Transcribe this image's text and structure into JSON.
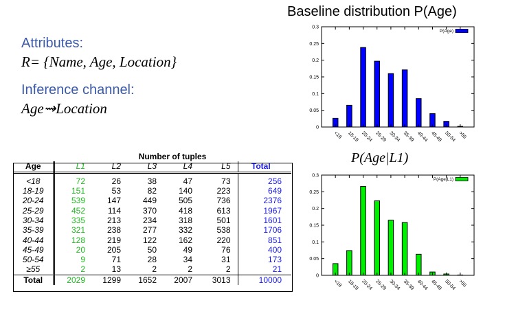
{
  "left": {
    "attributes_label": "Attributes:",
    "relation": "R= {Name, Age, Location}",
    "inference_label": "Inference channel:",
    "channel": "Age⇝Location"
  },
  "table": {
    "title": "Number of tuples",
    "headers": [
      "Age",
      "L1",
      "L2",
      "L3",
      "L4",
      "L5",
      "Total"
    ],
    "rows": [
      [
        "<18",
        "72",
        "26",
        "38",
        "47",
        "73",
        "256"
      ],
      [
        "18-19",
        "151",
        "53",
        "82",
        "140",
        "223",
        "649"
      ],
      [
        "20-24",
        "539",
        "147",
        "449",
        "505",
        "736",
        "2376"
      ],
      [
        "25-29",
        "452",
        "114",
        "370",
        "418",
        "613",
        "1967"
      ],
      [
        "30-34",
        "335",
        "213",
        "234",
        "318",
        "501",
        "1601"
      ],
      [
        "35-39",
        "321",
        "238",
        "277",
        "332",
        "538",
        "1706"
      ],
      [
        "40-44",
        "128",
        "219",
        "122",
        "162",
        "220",
        "851"
      ],
      [
        "45-49",
        "20",
        "205",
        "50",
        "49",
        "76",
        "400"
      ],
      [
        "50-54",
        "9",
        "71",
        "28",
        "34",
        "31",
        "173"
      ],
      [
        "≥55",
        "2",
        "13",
        "2",
        "2",
        "2",
        "21"
      ]
    ],
    "total_row": [
      "Total",
      "2029",
      "1299",
      "1652",
      "2007",
      "3013",
      "10000"
    ]
  },
  "chart_data": [
    {
      "type": "bar",
      "title": "Baseline distribution P(Age)",
      "categories": [
        "<18",
        "18-19",
        "20-24",
        "25-29",
        "30-34",
        "35-39",
        "40-44",
        "45-49",
        "50-54",
        ">55"
      ],
      "series": [
        {
          "name": "P(Age)",
          "color": "#0000ff",
          "values": [
            0.026,
            0.065,
            0.238,
            0.197,
            0.16,
            0.171,
            0.085,
            0.04,
            0.017,
            0.002
          ]
        }
      ],
      "ylim": [
        0,
        0.3
      ],
      "yticks": [
        "0",
        "0.05",
        "0.1",
        "0.15",
        "0.2",
        "0.25",
        "0.3"
      ],
      "legend": "top-right"
    },
    {
      "type": "bar",
      "title": "P(Age|L1)",
      "categories": [
        "<18",
        "18-19",
        "20-24",
        "25-29",
        "30-34",
        "35-39",
        "40-44",
        "45-49",
        "50-54",
        ">55"
      ],
      "series": [
        {
          "name": "P(Age|L1)",
          "color": "#00ee00",
          "values": [
            0.035,
            0.074,
            0.266,
            0.223,
            0.165,
            0.158,
            0.063,
            0.01,
            0.004,
            0.001
          ]
        }
      ],
      "ylim": [
        0,
        0.3
      ],
      "yticks": [
        "0",
        "0.05",
        "0.1",
        "0.15",
        "0.2",
        "0.25",
        "0.3"
      ],
      "legend": "top-right"
    }
  ]
}
